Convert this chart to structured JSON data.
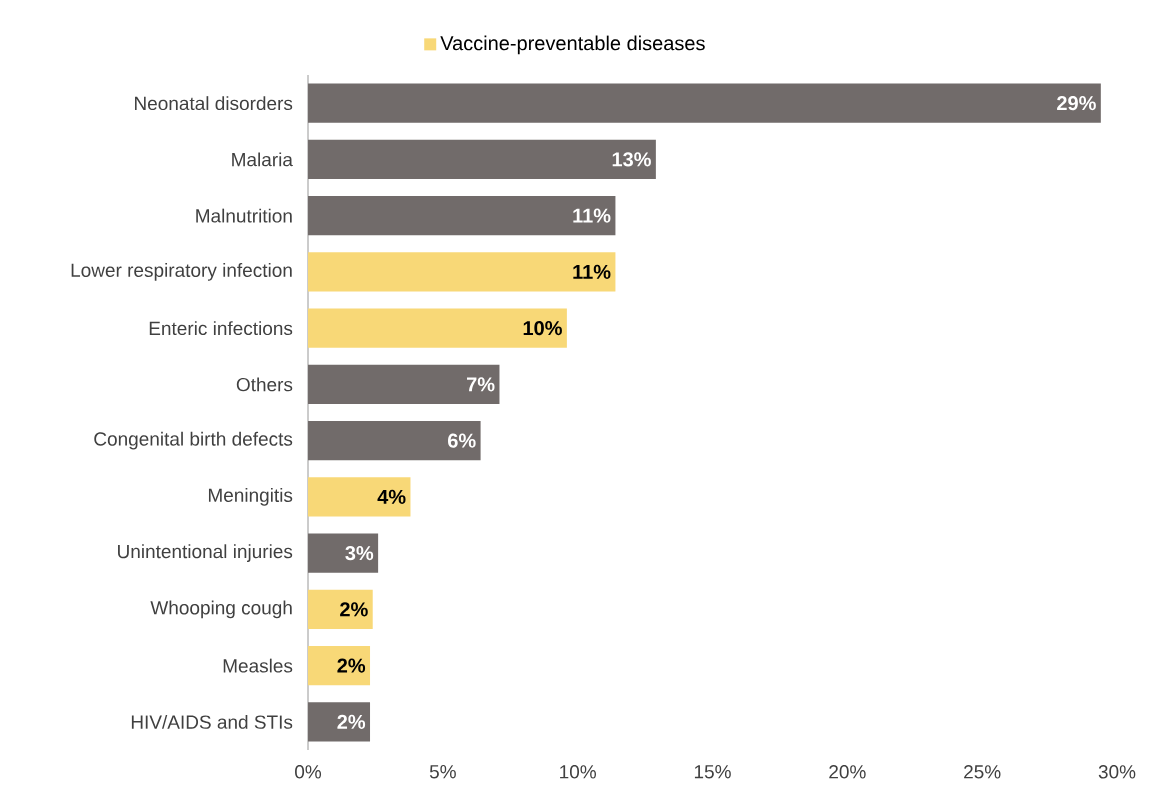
{
  "chart_data": {
    "type": "bar",
    "orientation": "horizontal",
    "categories": [
      "Neonatal disorders",
      "Malaria",
      "Malnutrition",
      "Lower respiratory infection",
      "Enteric infections",
      "Others",
      "Congenital birth defects",
      "Meningitis",
      "Unintentional injuries",
      "Whooping cough",
      "Measles",
      "HIV/AIDS and STIs"
    ],
    "series": [
      {
        "color": "#716b6a",
        "values": [
          29.4,
          12.9,
          11.4,
          null,
          null,
          7.1,
          6.4,
          null,
          2.6,
          null,
          null,
          2.3
        ],
        "value_labels": [
          "29%",
          "13%",
          "11%",
          null,
          null,
          "7%",
          "6%",
          null,
          "3%",
          null,
          null,
          "2%"
        ]
      },
      {
        "name": "Vaccine-preventable diseases",
        "color": "#f8d877",
        "values": [
          null,
          null,
          null,
          11.4,
          9.6,
          null,
          null,
          3.8,
          null,
          2.4,
          2.3,
          null
        ],
        "value_labels": [
          null,
          null,
          null,
          "11%",
          "10%",
          null,
          null,
          "4%",
          null,
          "2%",
          "2%",
          null
        ]
      }
    ],
    "xlim": [
      0,
      30
    ],
    "xticks": [
      {
        "value": 0,
        "label": "0%"
      },
      {
        "value": 5,
        "label": "5%"
      },
      {
        "value": 10,
        "label": "10%"
      },
      {
        "value": 15,
        "label": "15%"
      },
      {
        "value": 20,
        "label": "20%"
      },
      {
        "value": 25,
        "label": "25%"
      },
      {
        "value": 30,
        "label": "30%"
      }
    ],
    "legend": "top",
    "grid": false
  }
}
